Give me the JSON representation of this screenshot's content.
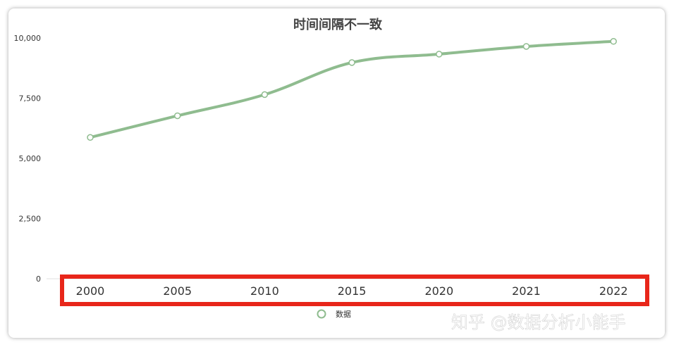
{
  "chart_data": {
    "type": "line",
    "title": "时间间隔不一致",
    "x": [
      "2000",
      "2005",
      "2010",
      "2015",
      "2020",
      "2021",
      "2022"
    ],
    "series": [
      {
        "name": "数据",
        "values": [
          5870,
          6770,
          7650,
          8980,
          9330,
          9650,
          9860
        ],
        "color": "#8fbc8f"
      }
    ],
    "ylim": [
      0,
      10000
    ],
    "yticks": [
      0,
      2500,
      5000,
      7500,
      10000
    ],
    "ytick_labels": [
      "0",
      "2,500",
      "5,000",
      "7,500",
      "10,000"
    ],
    "grid": false,
    "legend": "bottom-center",
    "line": "smooth"
  },
  "annotation": {
    "highlight": "x-axis",
    "color": "#e8261a"
  },
  "watermark": {
    "text": "知乎 @数据分析小能手"
  }
}
